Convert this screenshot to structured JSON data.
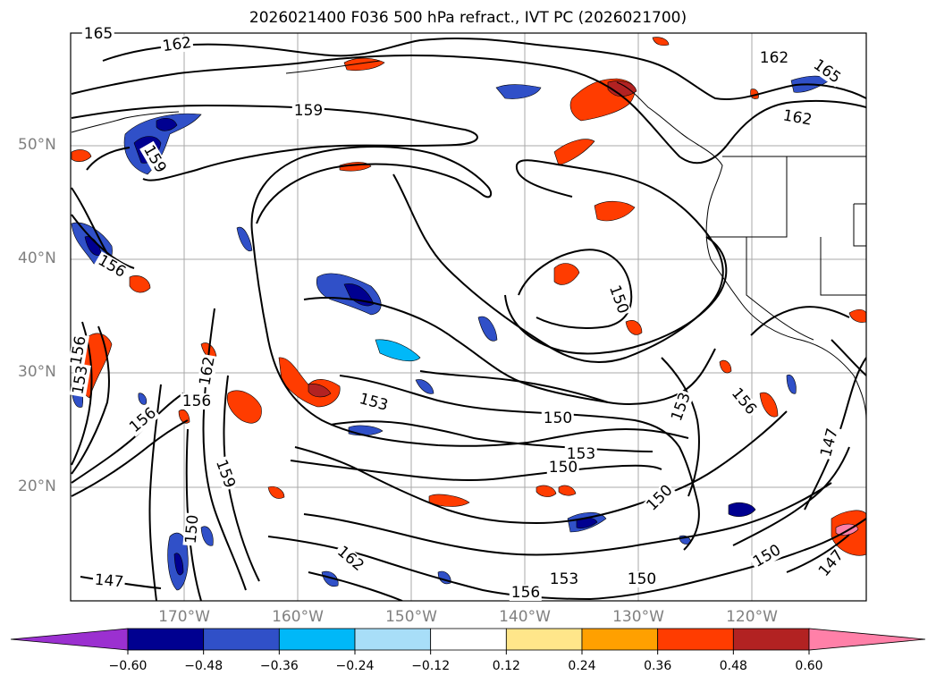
{
  "title": "2026021400 F036 500 hPa refract., IVT PC (2026021700)",
  "lat_labels": [
    "50°N",
    "40°N",
    "30°N",
    "20°N"
  ],
  "lon_labels": [
    "170°W",
    "160°W",
    "150°W",
    "140°W",
    "130°W",
    "120°W"
  ],
  "contour_labels": [
    "165",
    "162",
    "162",
    "165",
    "162",
    "159",
    "159",
    "156",
    "156",
    "153",
    "153",
    "156",
    "156",
    "159",
    "162",
    "156",
    "150",
    "153",
    "150",
    "153",
    "150",
    "150",
    "150",
    "147",
    "150",
    "147",
    "147",
    "150",
    "156",
    "153",
    "162"
  ],
  "colorbar": {
    "ticks": [
      "−0.60",
      "−0.48",
      "−0.36",
      "−0.24",
      "−0.12",
      "0.12",
      "0.24",
      "0.36",
      "0.48",
      "0.60"
    ],
    "colors": [
      "#9b30d0",
      "#000090",
      "#3050c8",
      "#00b8f8",
      "#a8def8",
      "#ffffff",
      "#ffe68a",
      "#ffa000",
      "#ff3c00",
      "#b22222",
      "#ff80a8"
    ]
  },
  "colors": {
    "contour": "#000000",
    "grid": "#a0a0a0",
    "coast": "#000000"
  }
}
